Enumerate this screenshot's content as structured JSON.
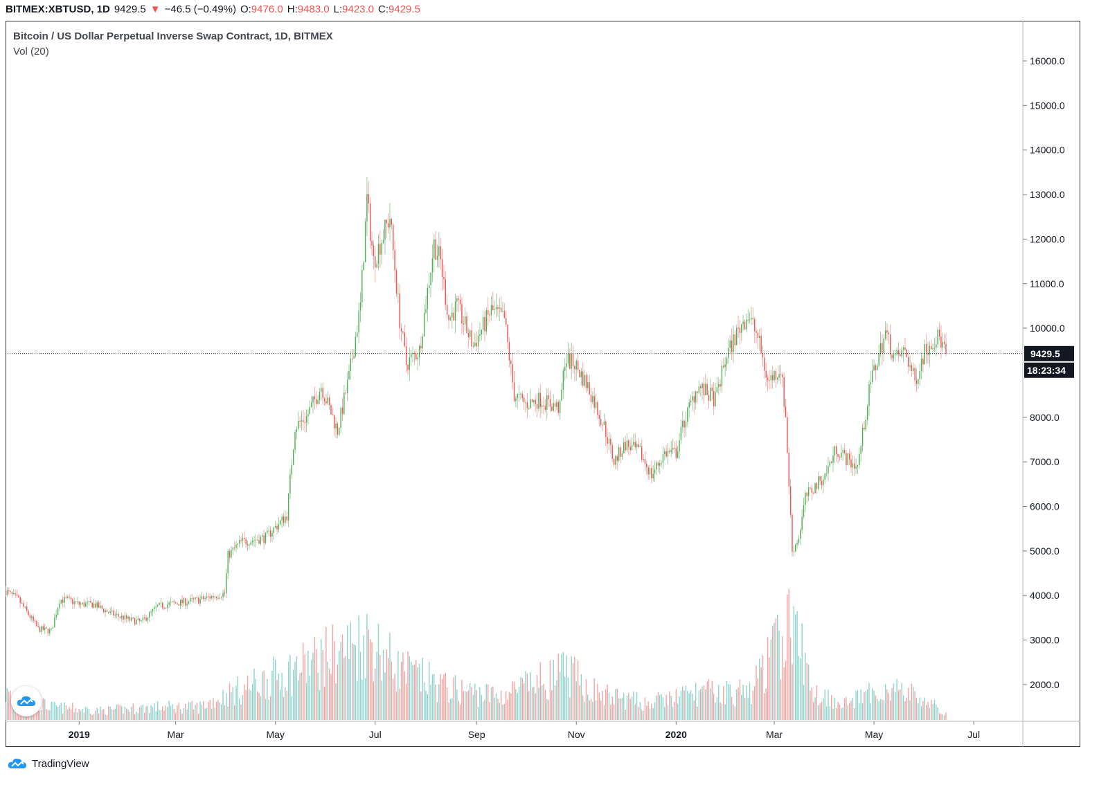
{
  "header": {
    "symbol": "BITMEX:XBTUSD, 1D",
    "last": "9429.5",
    "change": "−46.5 (−0.49%)",
    "o_label": "O:",
    "o_value": "9476.0",
    "h_label": "H:",
    "h_value": "9483.0",
    "l_label": "L:",
    "l_value": "9423.0",
    "c_label": "C:",
    "c_value": "9429.5"
  },
  "legend": {
    "title": "Bitcoin / US Dollar Perpetual Inverse Swap Contract, 1D, BITMEX",
    "volume": "Vol (20)"
  },
  "price_tag": {
    "price": "9429.5",
    "countdown": "18:23:34"
  },
  "footer": {
    "brand": "TradingView"
  },
  "colors": {
    "up": "#26a69a",
    "up_candle": "#4caf50",
    "down": "#ef5350",
    "vol_up": "#8fd3cc",
    "vol_down": "#f4a3a1",
    "axis_text": "#131722"
  },
  "chart_data": {
    "type": "candlestick",
    "interval": "1D",
    "y_axis": {
      "ticks": [
        2000,
        3000,
        4000,
        5000,
        6000,
        7000,
        8000,
        9000,
        10000,
        11000,
        12000,
        13000,
        14000,
        15000,
        16000
      ],
      "tick_labels": [
        "2000.0",
        "3000.0",
        "4000.0",
        "5000.0",
        "6000.0",
        "7000.0",
        "8000.0",
        "",
        "10000.0",
        "11000.0",
        "12000.0",
        "13000.0",
        "14000.0",
        "15000.0",
        "16000.0"
      ],
      "range": [
        1200,
        16900
      ]
    },
    "x_axis": {
      "labels": [
        {
          "label": "2019",
          "date": "2019-01-01",
          "bold": true
        },
        {
          "label": "Mar",
          "date": "2019-03-01",
          "bold": false
        },
        {
          "label": "May",
          "date": "2019-05-01",
          "bold": false
        },
        {
          "label": "Jul",
          "date": "2019-07-01",
          "bold": false
        },
        {
          "label": "Sep",
          "date": "2019-09-01",
          "bold": false
        },
        {
          "label": "Nov",
          "date": "2019-11-01",
          "bold": false
        },
        {
          "label": "2020",
          "date": "2020-01-01",
          "bold": true
        },
        {
          "label": "Mar",
          "date": "2020-03-01",
          "bold": false
        },
        {
          "label": "May",
          "date": "2020-05-01",
          "bold": false
        },
        {
          "label": "Jul",
          "date": "2020-07-01",
          "bold": false
        }
      ],
      "range": [
        "2018-11-17",
        "2020-07-31"
      ]
    },
    "last_price_line": 9429.5,
    "price_path": [
      [
        "2018-11-17",
        4100
      ],
      [
        "2018-11-25",
        3900
      ],
      [
        "2018-12-07",
        3250
      ],
      [
        "2018-12-15",
        3200
      ],
      [
        "2018-12-20",
        3900
      ],
      [
        "2018-12-25",
        3900
      ],
      [
        "2019-01-01",
        3800
      ],
      [
        "2019-01-10",
        3800
      ],
      [
        "2019-01-20",
        3600
      ],
      [
        "2019-02-01",
        3450
      ],
      [
        "2019-02-08",
        3400
      ],
      [
        "2019-02-18",
        3750
      ],
      [
        "2019-02-24",
        3800
      ],
      [
        "2019-03-15",
        3900
      ],
      [
        "2019-03-31",
        4050
      ],
      [
        "2019-04-02",
        4900
      ],
      [
        "2019-04-10",
        5200
      ],
      [
        "2019-04-25",
        5300
      ],
      [
        "2019-05-08",
        5800
      ],
      [
        "2019-05-13",
        7800
      ],
      [
        "2019-05-20",
        8000
      ],
      [
        "2019-05-29",
        8700
      ],
      [
        "2019-06-08",
        7700
      ],
      [
        "2019-06-15",
        8900
      ],
      [
        "2019-06-22",
        10500
      ],
      [
        "2019-06-26",
        12900
      ],
      [
        "2019-06-30",
        11500
      ],
      [
        "2019-07-03",
        11800
      ],
      [
        "2019-07-10",
        12500
      ],
      [
        "2019-07-16",
        10200
      ],
      [
        "2019-07-20",
        9200
      ],
      [
        "2019-07-28",
        9500
      ],
      [
        "2019-08-06",
        11900
      ],
      [
        "2019-08-10",
        11500
      ],
      [
        "2019-08-15",
        10200
      ],
      [
        "2019-08-20",
        10500
      ],
      [
        "2019-08-30",
        9600
      ],
      [
        "2019-09-10",
        10400
      ],
      [
        "2019-09-18",
        10200
      ],
      [
        "2019-09-24",
        8500
      ],
      [
        "2019-10-01",
        8300
      ],
      [
        "2019-10-10",
        8400
      ],
      [
        "2019-10-22",
        8200
      ],
      [
        "2019-10-25",
        9300
      ],
      [
        "2019-10-31",
        9200
      ],
      [
        "2019-11-08",
        8700
      ],
      [
        "2019-11-18",
        7800
      ],
      [
        "2019-11-24",
        7000
      ],
      [
        "2019-12-01",
        7400
      ],
      [
        "2019-12-10",
        7200
      ],
      [
        "2019-12-17",
        6700
      ],
      [
        "2019-12-25",
        7200
      ],
      [
        "2020-01-01",
        7200
      ],
      [
        "2020-01-05",
        7800
      ],
      [
        "2020-01-14",
        8700
      ],
      [
        "2020-01-25",
        8400
      ],
      [
        "2020-02-01",
        9400
      ],
      [
        "2020-02-10",
        10100
      ],
      [
        "2020-02-14",
        10300
      ],
      [
        "2020-02-20",
        9800
      ],
      [
        "2020-02-26",
        8800
      ],
      [
        "2020-03-05",
        9100
      ],
      [
        "2020-03-08",
        8000
      ],
      [
        "2020-03-12",
        5000
      ],
      [
        "2020-03-16",
        5300
      ],
      [
        "2020-03-20",
        6200
      ],
      [
        "2020-04-01",
        6700
      ],
      [
        "2020-04-08",
        7300
      ],
      [
        "2020-04-16",
        7000
      ],
      [
        "2020-04-21",
        6900
      ],
      [
        "2020-04-29",
        8800
      ],
      [
        "2020-05-08",
        9900
      ],
      [
        "2020-05-14",
        9300
      ],
      [
        "2020-05-20",
        9500
      ],
      [
        "2020-05-26",
        8800
      ],
      [
        "2020-06-01",
        9500
      ],
      [
        "2020-06-05",
        9700
      ],
      [
        "2020-06-10",
        9800
      ],
      [
        "2020-06-14",
        9429.5
      ]
    ],
    "volume_path": [
      [
        "2018-11-17",
        1900
      ],
      [
        "2018-12-15",
        1550
      ],
      [
        "2019-01-15",
        1450
      ],
      [
        "2019-02-15",
        1550
      ],
      [
        "2019-03-15",
        1550
      ],
      [
        "2019-04-05",
        1950
      ],
      [
        "2019-05-15",
        2600
      ],
      [
        "2019-06-27",
        3400
      ],
      [
        "2019-07-15",
        2600
      ],
      [
        "2019-08-15",
        2050
      ],
      [
        "2019-09-15",
        1850
      ],
      [
        "2019-10-26",
        2500
      ],
      [
        "2019-11-15",
        1900
      ],
      [
        "2019-12-15",
        1650
      ],
      [
        "2020-01-15",
        1950
      ],
      [
        "2020-02-15",
        1950
      ],
      [
        "2020-03-12",
        3900
      ],
      [
        "2020-03-25",
        1950
      ],
      [
        "2020-04-15",
        1650
      ],
      [
        "2020-05-10",
        2100
      ],
      [
        "2020-06-01",
        1750
      ],
      [
        "2020-06-14",
        1350
      ]
    ]
  }
}
